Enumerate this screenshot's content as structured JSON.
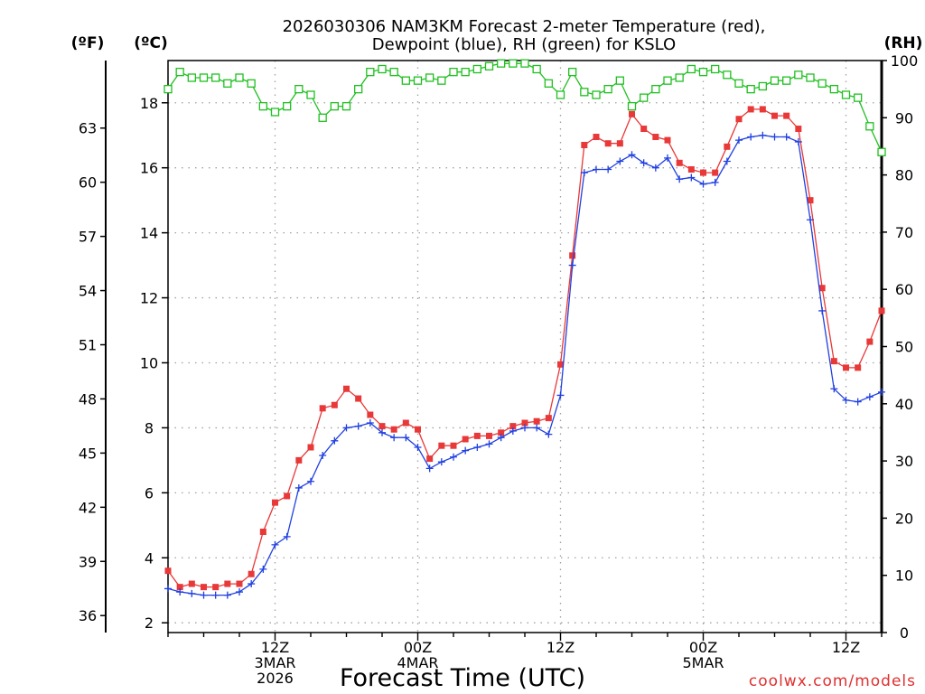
{
  "chart_data": {
    "type": "line",
    "title": [
      "2026030306 NAM3KM Forecast 2-meter Temperature (red),",
      "Dewpoint (blue), RH (green) for KSLO"
    ],
    "xlabel": "Forecast Time (UTC)",
    "credit": "coolwx.com/models",
    "units": {
      "f": "(ºF)",
      "c": "(ºC)",
      "rh": "(RH)"
    },
    "x_hours": {
      "min": 3,
      "max": 63
    },
    "x_ticks": [
      {
        "hour": 12,
        "lines": [
          "12Z",
          "3MAR",
          "2026"
        ]
      },
      {
        "hour": 24,
        "lines": [
          "00Z",
          "4MAR"
        ]
      },
      {
        "hour": 36,
        "lines": [
          "12Z"
        ]
      },
      {
        "hour": 48,
        "lines": [
          "00Z",
          "5MAR"
        ]
      },
      {
        "hour": 60,
        "lines": [
          "12Z"
        ]
      }
    ],
    "y_celsius": {
      "ylim": [
        1.7,
        19.3
      ],
      "ticks": [
        "2",
        "4",
        "6",
        "8",
        "10",
        "12",
        "14",
        "16",
        "18"
      ]
    },
    "y_fahrenheit": {
      "ticks": [
        "36",
        "39",
        "42",
        "45",
        "48",
        "51",
        "54",
        "57",
        "60",
        "63"
      ]
    },
    "y_rh": {
      "ylim": [
        0,
        100
      ],
      "ticks": [
        "0",
        "10",
        "20",
        "30",
        "40",
        "50",
        "60",
        "70",
        "80",
        "90",
        "100"
      ]
    },
    "colors": {
      "temperature": "#e83838",
      "dewpoint": "#2040e0",
      "rh": "#20c020"
    },
    "series": [
      {
        "name": "Temperature (°C)",
        "axis": "c",
        "marker": "square",
        "values": [
          3.6,
          3.1,
          3.2,
          3.1,
          3.1,
          3.2,
          3.2,
          3.5,
          4.8,
          5.7,
          5.9,
          7.0,
          7.4,
          8.6,
          8.7,
          9.2,
          8.9,
          8.4,
          8.05,
          7.95,
          8.15,
          7.95,
          7.05,
          7.45,
          7.45,
          7.65,
          7.75,
          7.75,
          7.85,
          8.05,
          8.15,
          8.2,
          8.3,
          9.95,
          13.3,
          16.7,
          16.95,
          16.75,
          16.75,
          17.65,
          17.2,
          16.95,
          16.85,
          16.15,
          15.95,
          15.85,
          15.85,
          16.65,
          17.5,
          17.8,
          17.8,
          17.6,
          17.6,
          17.2,
          15.0,
          12.3,
          10.05,
          9.85,
          9.85,
          10.65,
          11.6
        ]
      },
      {
        "name": "Dewpoint (°C)",
        "axis": "c",
        "marker": "plus",
        "values": [
          3.05,
          2.95,
          2.9,
          2.85,
          2.85,
          2.85,
          2.95,
          3.2,
          3.65,
          4.4,
          4.65,
          6.15,
          6.35,
          7.15,
          7.6,
          8.0,
          8.05,
          8.15,
          7.85,
          7.7,
          7.7,
          7.4,
          6.75,
          6.95,
          7.1,
          7.3,
          7.4,
          7.5,
          7.7,
          7.9,
          8.0,
          8.0,
          7.8,
          9.0,
          13.0,
          15.85,
          15.95,
          15.95,
          16.2,
          16.4,
          16.15,
          16.0,
          16.3,
          15.65,
          15.7,
          15.5,
          15.55,
          16.2,
          16.85,
          16.95,
          17.0,
          16.95,
          16.95,
          16.8,
          14.4,
          11.6,
          9.2,
          8.85,
          8.8,
          8.95,
          9.1
        ]
      },
      {
        "name": "RH (%)",
        "axis": "rh",
        "marker": "open-square",
        "values": [
          95,
          98,
          97,
          97,
          97,
          96,
          97,
          96,
          92,
          91,
          92,
          95,
          94,
          90,
          92,
          92,
          95,
          98,
          98.5,
          98,
          96.5,
          96.5,
          97,
          96.5,
          98,
          98,
          98.5,
          99,
          99.5,
          99.5,
          99.5,
          98.5,
          96,
          94,
          98,
          94.5,
          94,
          95,
          96.5,
          92,
          93.5,
          95,
          96.5,
          97,
          98.5,
          98,
          98.5,
          97.5,
          96,
          95,
          95.5,
          96.5,
          96.5,
          97.5,
          97,
          96,
          95,
          94,
          93.5,
          88.5,
          84
        ]
      }
    ]
  }
}
